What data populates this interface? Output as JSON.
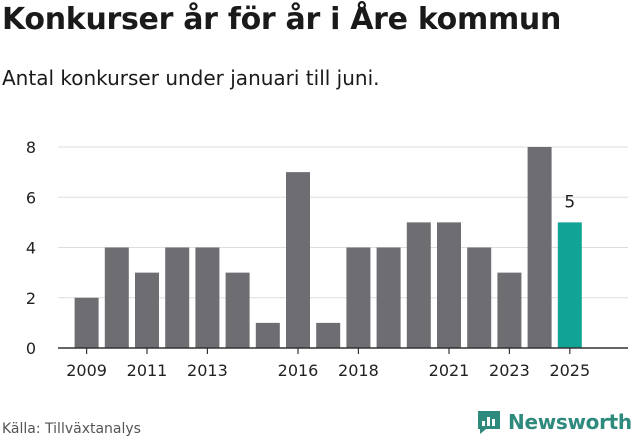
{
  "title": "Konkurser år för år i Åre kommun",
  "subtitle": "Antal konkurser under januari till juni.",
  "source": "Källa: Tillväxtanalys",
  "brand": {
    "name": "Newsworthy",
    "icon": "newsworthy-logo-icon",
    "color": "#2d8a7c"
  },
  "chart_data": {
    "type": "bar",
    "title": "Konkurser år för år i Åre kommun",
    "subtitle": "Antal konkurser under januari till juni.",
    "xlabel": "",
    "ylabel": "",
    "categories": [
      "2009",
      "2010",
      "2011",
      "2012",
      "2013",
      "2014",
      "2015",
      "2016",
      "2017",
      "2018",
      "2019",
      "2020",
      "2021",
      "2022",
      "2023",
      "2024",
      "2025"
    ],
    "values": [
      2,
      4,
      3,
      4,
      4,
      3,
      1,
      7,
      1,
      4,
      4,
      5,
      5,
      4,
      3,
      8,
      5
    ],
    "x_tick_labels": [
      "2009",
      "2011",
      "2013",
      "2016",
      "2018",
      "2021",
      "2023",
      "2025"
    ],
    "y_ticks": [
      0,
      2,
      4,
      6,
      8
    ],
    "ylim": [
      0,
      8
    ],
    "grid": true,
    "legend": "none",
    "highlight": {
      "category": "2025",
      "label": "5"
    },
    "colors": {
      "bar": "#6d6d72",
      "highlight": "#11a393",
      "grid": "#dddddd",
      "axis": "#333333"
    }
  }
}
